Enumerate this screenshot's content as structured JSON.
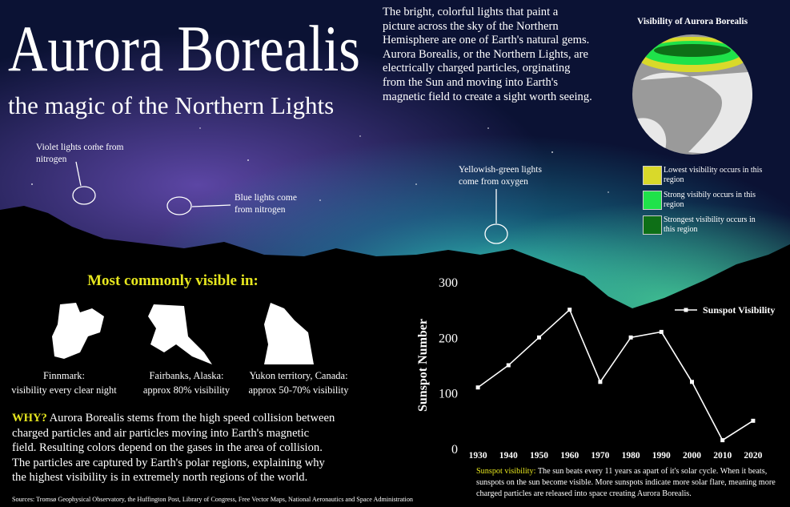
{
  "header": {
    "title": "Aurora Borealis",
    "subtitle": "the magic of the Northern Lights"
  },
  "intro": "The bright, colorful lights that paint a picture across  the sky of the Northern Hemisphere are one of Earth's natural gems. Aurora Borealis, or the Northern Lights, are electrically charged particles, orginating from the Sun and moving into Earth's magnetic field to create a sight worth seeing.",
  "globe": {
    "title": "Visibility of Aurora Borealis",
    "legend": [
      {
        "color": "#d9d92a",
        "label": "Lowest visibility occurs in this region"
      },
      {
        "color": "#1fe24a",
        "label": "Strong visibily occurs in this region"
      },
      {
        "color": "#0e6f17",
        "label": "Strongest visibility occurs in this region"
      }
    ]
  },
  "callouts": [
    "Violet lights come from nitrogen",
    "Blue lights come from nitrogen",
    "Yellowish-green lights come from oxygen"
  ],
  "visible": {
    "heading": "Most commonly visible in:",
    "places": [
      {
        "name": "Finnmark:",
        "note": "visibility every clear night"
      },
      {
        "name": "Fairbanks, Alaska:",
        "note": "approx 80% visibility"
      },
      {
        "name": "Yukon territory, Canada:",
        "note": "approx 50-70% visibility"
      }
    ]
  },
  "why": {
    "label": "WHY?",
    "text": "Aurora Borealis stems from the high speed collision between charged particles and air particles moving into Earth's magnetic field. Resulting colors depend on the gases in the area of collision. The particles are captured by Earth's polar regions, explaining why the highest visibility is in extremely north regions of the world."
  },
  "sources": "Sources:  Tromsø Geophysical Observatory,  the Huffington Post, Library of Congress, Free Vector Maps, National Aeronautics and Space Administration",
  "chart_data": {
    "type": "line",
    "y_label": "Sunspot Number",
    "x": [
      1930,
      1940,
      1950,
      1960,
      1970,
      1980,
      1990,
      2000,
      2010,
      2020
    ],
    "xlim": [
      1925,
      2025
    ],
    "xticks": [
      1930,
      1940,
      1950,
      1960,
      1970,
      1980,
      1990,
      2000,
      2010,
      2020
    ],
    "ylim": [
      0,
      300
    ],
    "yticks": [
      0,
      100,
      200,
      300
    ],
    "series": [
      {
        "name": "Sunspot Visibility",
        "color": "#ffffff",
        "values": [
          110,
          150,
          200,
          250,
          120,
          200,
          210,
          120,
          15,
          50
        ]
      }
    ],
    "annotation": {
      "label": "Sunspot visibility:",
      "text": "The sun beats every 11 years as apart of it's solar cycle. When it beats, sunspots on the sun become visible. More sunspots indicate more solar flare, meaning more charged particles are released into space creating Aurora Borealis."
    }
  }
}
